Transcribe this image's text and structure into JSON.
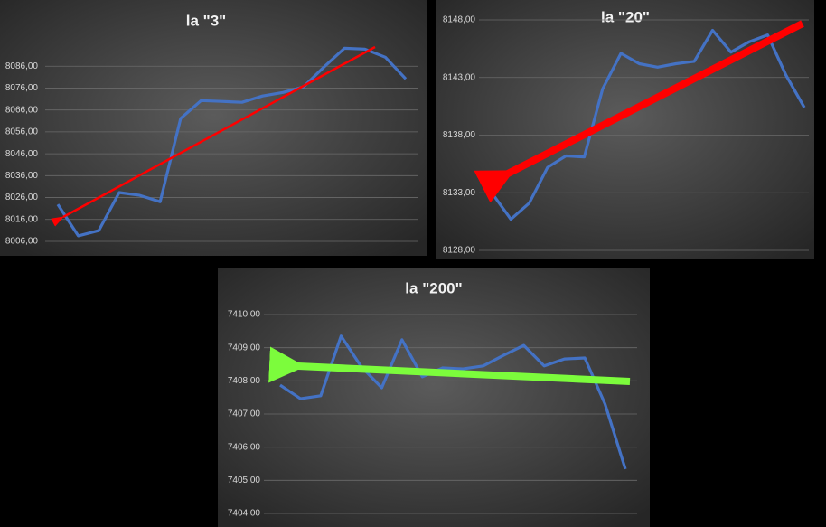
{
  "chart_data": [
    {
      "type": "line",
      "title": "la \"3\"",
      "categories": [
        null,
        null,
        null,
        null,
        null,
        null,
        null,
        null,
        null,
        null,
        null,
        null,
        null,
        null,
        null,
        null,
        null,
        null
      ],
      "values": [
        8022.9,
        8008.5,
        8010.9,
        8028.3,
        8027.0,
        8024.1,
        8062.1,
        8070.3,
        8069.9,
        8069.5,
        8072.4,
        8074.0,
        8076.5,
        8085.6,
        8094.2,
        8093.8,
        8090.1,
        8080.2
      ],
      "color": "#4472c4",
      "ylim": [
        8006,
        8096
      ],
      "yticks": [
        {
          "value": 8006,
          "label": "8006,00"
        },
        {
          "value": 8016,
          "label": "8016,00"
        },
        {
          "value": 8026,
          "label": "8026,00"
        },
        {
          "value": 8036,
          "label": "8036,00"
        },
        {
          "value": 8046,
          "label": "8046,00"
        },
        {
          "value": 8056,
          "label": "8056,00"
        },
        {
          "value": 8066,
          "label": "8066,00"
        },
        {
          "value": 8076,
          "label": "8076,00"
        },
        {
          "value": 8086,
          "label": "8086,00"
        }
      ],
      "grid": true
    },
    {
      "type": "line",
      "title": "la \"20\"",
      "categories": [
        null,
        null,
        null,
        null,
        null,
        null,
        null,
        null,
        null,
        null,
        null,
        null,
        null,
        null,
        null,
        null,
        null,
        null
      ],
      "values": [
        8132.9,
        8130.7,
        8132.1,
        8135.2,
        8136.2,
        8136.1,
        8142.0,
        8145.1,
        8144.2,
        8143.9,
        8144.2,
        8144.4,
        8147.1,
        8145.2,
        8146.1,
        8146.7,
        8143.2,
        8140.4
      ],
      "color": "#4472c4",
      "ylim": [
        8128,
        8148
      ],
      "yticks": [
        {
          "value": 8128,
          "label": "8128,00"
        },
        {
          "value": 8133,
          "label": "8133,00"
        },
        {
          "value": 8138,
          "label": "8138,00"
        },
        {
          "value": 8143,
          "label": "8143,00"
        },
        {
          "value": 8148,
          "label": "8148,00"
        }
      ],
      "grid": true
    },
    {
      "type": "line",
      "title": "la \"200\"",
      "categories": [
        null,
        null,
        null,
        null,
        null,
        null,
        null,
        null,
        null,
        null,
        null,
        null,
        null,
        null,
        null,
        null,
        null,
        null
      ],
      "values": [
        7407.87,
        7407.46,
        7407.55,
        7409.35,
        7408.42,
        7407.79,
        7409.24,
        7408.12,
        7408.39,
        7408.36,
        7408.45,
        7408.77,
        7409.07,
        7408.45,
        7408.66,
        7408.69,
        7407.3,
        7405.34
      ],
      "color": "#4472c4",
      "ylim": [
        7404,
        7410
      ],
      "yticks": [
        {
          "value": 7404,
          "label": "7404,00"
        },
        {
          "value": 7405,
          "label": "7405,00"
        },
        {
          "value": 7406,
          "label": "7406,00"
        },
        {
          "value": 7407,
          "label": "7407,00"
        },
        {
          "value": 7408,
          "label": "7408,00"
        },
        {
          "value": 7409,
          "label": "7409,00"
        },
        {
          "value": 7410,
          "label": "7410,00"
        }
      ],
      "grid": true
    }
  ]
}
